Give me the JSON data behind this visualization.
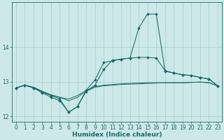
{
  "xlabel": "Humidex (Indice chaleur)",
  "bg_color": "#cde8e8",
  "grid_color": "#aacccc",
  "line_color": "#1a6b6b",
  "x": [
    0,
    1,
    2,
    3,
    4,
    5,
    6,
    7,
    8,
    9,
    10,
    11,
    12,
    13,
    14,
    15,
    16,
    17,
    18,
    19,
    20,
    21,
    22,
    23
  ],
  "curve_peak": [
    12.82,
    12.9,
    12.82,
    12.7,
    12.6,
    12.5,
    12.12,
    12.28,
    12.75,
    13.05,
    13.55,
    13.6,
    13.65,
    13.68,
    14.55,
    14.95,
    14.95,
    13.3,
    13.25,
    13.2,
    13.18,
    13.12,
    13.08,
    12.88
  ],
  "curve_upper": [
    12.82,
    12.9,
    12.82,
    12.68,
    12.55,
    12.45,
    12.12,
    12.28,
    12.72,
    12.9,
    13.35,
    13.62,
    13.65,
    13.68,
    13.7,
    13.7,
    13.68,
    13.32,
    13.25,
    13.2,
    13.18,
    13.12,
    13.08,
    12.88
  ],
  "curve_flat1": [
    12.82,
    12.9,
    12.84,
    12.72,
    12.62,
    12.55,
    12.45,
    12.55,
    12.72,
    12.84,
    12.88,
    12.9,
    12.92,
    12.93,
    12.94,
    12.95,
    12.96,
    12.97,
    12.97,
    12.97,
    12.98,
    12.99,
    12.97,
    12.88
  ],
  "curve_flat2": [
    12.82,
    12.9,
    12.84,
    12.72,
    12.62,
    12.55,
    12.5,
    12.6,
    12.75,
    12.86,
    12.9,
    12.92,
    12.94,
    12.95,
    12.96,
    12.97,
    12.97,
    12.97,
    12.97,
    12.97,
    12.98,
    12.99,
    12.97,
    12.88
  ],
  "ylim": [
    11.85,
    15.3
  ],
  "yticks": [
    12,
    13,
    14
  ]
}
